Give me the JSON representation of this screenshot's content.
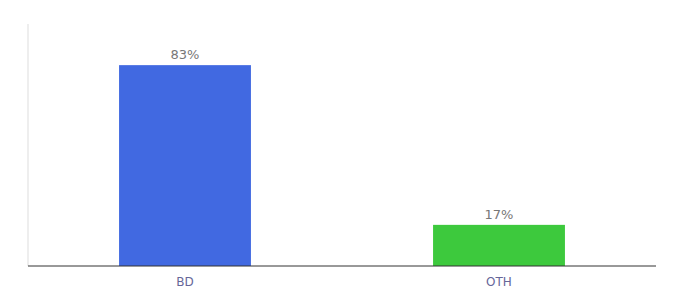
{
  "chart_data": {
    "type": "bar",
    "categories": [
      "BD",
      "OTH"
    ],
    "values": [
      83,
      17
    ],
    "colors": [
      "#4169e1",
      "#3dc93d"
    ],
    "value_labels": [
      "83%",
      "17%"
    ],
    "data_labels": true,
    "ylim": [
      0,
      100
    ],
    "tick_labels": "x",
    "grid": false
  }
}
